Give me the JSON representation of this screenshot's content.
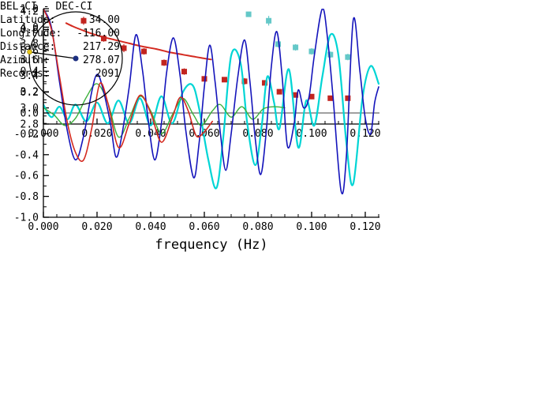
{
  "info_panel": {
    "title": "BEL-CI - DEC-CI",
    "fields": [
      {
        "label": "Latitude:",
        "value": "34.00"
      },
      {
        "label": "Longitude:",
        "value": "-116.00"
      },
      {
        "label": "Distance:",
        "value": "217.29"
      },
      {
        "label": "Azimuth:",
        "value": "278.07"
      },
      {
        "label": "Records:",
        "value": "2091"
      }
    ]
  },
  "azimuth_diagram": {
    "azimuth_deg": 278.07,
    "circle_color": "#000000",
    "line_color": "#000000",
    "station_dot_color": "#e6c619",
    "center_dot_color": "#1c2f80"
  },
  "chart_data": [
    {
      "type": "scatter",
      "title": "",
      "xlabel": "",
      "ylabel": "",
      "xlim": [
        0.0,
        0.1253
      ],
      "ylim": [
        2.8,
        4.2
      ],
      "grid": false,
      "zero_line": false,
      "x_minor_step": 0.005,
      "y_minor_step": 0.1,
      "xticks": [
        {
          "v": 0.0,
          "label": "0.000"
        },
        {
          "v": 0.02,
          "label": "0.020"
        },
        {
          "v": 0.04,
          "label": "0.040"
        },
        {
          "v": 0.06,
          "label": "0.060"
        },
        {
          "v": 0.08,
          "label": "0.080"
        },
        {
          "v": 0.1,
          "label": "0.100"
        },
        {
          "v": 0.12,
          "label": "0.120"
        }
      ],
      "yticks": [
        {
          "v": 2.8,
          "label": "2.8"
        },
        {
          "v": 3.0,
          "label": "3.0"
        },
        {
          "v": 3.2,
          "label": "3.2"
        },
        {
          "v": 3.4,
          "label": "3.4"
        },
        {
          "v": 3.6,
          "label": "3.6"
        },
        {
          "v": 3.8,
          "label": "3.8"
        },
        {
          "v": 4.0,
          "label": "4.0"
        },
        {
          "v": 4.2,
          "label": "4.2"
        }
      ],
      "series": [
        {
          "name": "dispersion-curve-red",
          "kind": "line",
          "color": "#d42a20",
          "width": 2,
          "points": [
            [
              0.0085,
              4.05
            ],
            [
              0.011,
              4.01
            ],
            [
              0.014,
              3.97
            ],
            [
              0.018,
              3.92
            ],
            [
              0.022,
              3.88
            ],
            [
              0.027,
              3.84
            ],
            [
              0.032,
              3.8
            ],
            [
              0.037,
              3.76
            ],
            [
              0.042,
              3.73
            ],
            [
              0.047,
              3.69
            ],
            [
              0.052,
              3.66
            ],
            [
              0.057,
              3.63
            ],
            [
              0.0625,
              3.6
            ]
          ]
        },
        {
          "name": "dispersion-points-red",
          "kind": "scatter",
          "marker": "square",
          "color": "#c22520",
          "points": [
            [
              0.015,
              4.08,
              0.05
            ],
            [
              0.0225,
              3.86,
              0.04
            ],
            [
              0.03,
              3.74,
              0.05
            ],
            [
              0.0375,
              3.7,
              0.04
            ],
            [
              0.045,
              3.56,
              0.04
            ],
            [
              0.0525,
              3.45,
              0.04
            ],
            [
              0.06,
              3.36,
              0.03
            ],
            [
              0.0675,
              3.35,
              0.03
            ],
            [
              0.075,
              3.33,
              0.04
            ],
            [
              0.0825,
              3.31,
              0.03
            ],
            [
              0.088,
              3.2,
              0.03
            ],
            [
              0.094,
              3.16,
              0.03
            ],
            [
              0.1,
              3.14,
              0.03
            ],
            [
              0.107,
              3.12,
              0.03
            ],
            [
              0.1135,
              3.12,
              0.03
            ]
          ]
        },
        {
          "name": "dispersion-points-cyan",
          "kind": "scatter",
          "marker": "square",
          "color": "#64c8c8",
          "points": [
            [
              0.0765,
              4.16,
              0.03
            ],
            [
              0.084,
              4.08,
              0.06
            ],
            [
              0.0875,
              3.79,
              0.04
            ],
            [
              0.094,
              3.75,
              0.04
            ],
            [
              0.1,
              3.7,
              0.04
            ],
            [
              0.107,
              3.66,
              0.04
            ],
            [
              0.1135,
              3.63,
              0.04
            ]
          ]
        }
      ]
    },
    {
      "type": "line",
      "title": "",
      "xlabel": "frequency (Hz)",
      "ylabel": "",
      "xlim": [
        0.0,
        0.1253
      ],
      "ylim": [
        -1.0,
        1.0
      ],
      "grid": false,
      "zero_line": true,
      "x_minor_step": 0.005,
      "y_minor_step": 0.1,
      "xticks": [
        {
          "v": 0.0,
          "label": "0.000"
        },
        {
          "v": 0.02,
          "label": "0.020"
        },
        {
          "v": 0.04,
          "label": "0.040"
        },
        {
          "v": 0.06,
          "label": "0.060"
        },
        {
          "v": 0.08,
          "label": "0.080"
        },
        {
          "v": 0.1,
          "label": "0.100"
        },
        {
          "v": 0.12,
          "label": "0.120"
        }
      ],
      "yticks": [
        {
          "v": -1.0,
          "label": "-1.0"
        },
        {
          "v": -0.8,
          "label": "-0.8"
        },
        {
          "v": -0.6,
          "label": "-0.6"
        },
        {
          "v": -0.4,
          "label": "-0.4"
        },
        {
          "v": -0.2,
          "label": "-0.2"
        },
        {
          "v": 0.0,
          "label": "0.0"
        },
        {
          "v": 0.2,
          "label": "0.2"
        },
        {
          "v": 0.4,
          "label": "0.4"
        },
        {
          "v": 0.6,
          "label": "0.6"
        },
        {
          "v": 0.8,
          "label": "0.8"
        },
        {
          "v": 1.0,
          "label": "1.0"
        }
      ],
      "series": [
        {
          "name": "spectrum-cyan",
          "kind": "line",
          "color": "#00d5d5",
          "width": 2.2,
          "points": [
            [
              0.0,
              0.08
            ],
            [
              0.003,
              -0.04
            ],
            [
              0.006,
              0.06
            ],
            [
              0.009,
              -0.06
            ],
            [
              0.012,
              0.08
            ],
            [
              0.016,
              -0.08
            ],
            [
              0.02,
              0.1
            ],
            [
              0.024,
              -0.1
            ],
            [
              0.028,
              0.12
            ],
            [
              0.032,
              -0.1
            ],
            [
              0.036,
              0.14
            ],
            [
              0.04,
              -0.12
            ],
            [
              0.044,
              0.16
            ],
            [
              0.048,
              -0.1
            ],
            [
              0.052,
              0.2
            ],
            [
              0.0555,
              0.27
            ],
            [
              0.058,
              0.05
            ],
            [
              0.0615,
              -0.45
            ],
            [
              0.0645,
              -0.72
            ],
            [
              0.067,
              -0.25
            ],
            [
              0.07,
              0.55
            ],
            [
              0.0735,
              0.48
            ],
            [
              0.076,
              -0.1
            ],
            [
              0.079,
              -0.5
            ],
            [
              0.0815,
              -0.1
            ],
            [
              0.0835,
              0.35
            ],
            [
              0.086,
              0.1
            ],
            [
              0.088,
              -0.15
            ],
            [
              0.0915,
              0.42
            ],
            [
              0.095,
              -0.33
            ],
            [
              0.098,
              0.12
            ],
            [
              0.101,
              -0.12
            ],
            [
              0.104,
              0.35
            ],
            [
              0.107,
              0.75
            ],
            [
              0.11,
              0.55
            ],
            [
              0.113,
              -0.3
            ],
            [
              0.1155,
              -0.68
            ],
            [
              0.119,
              0.15
            ],
            [
              0.122,
              0.45
            ],
            [
              0.125,
              0.28
            ]
          ]
        },
        {
          "name": "spectrum-green",
          "kind": "line",
          "color": "#3cb03c",
          "width": 1.4,
          "points": [
            [
              0.0,
              0.05
            ],
            [
              0.004,
              -0.02
            ],
            [
              0.008,
              -0.12
            ],
            [
              0.012,
              -0.05
            ],
            [
              0.016,
              0.15
            ],
            [
              0.02,
              0.28
            ],
            [
              0.024,
              0.1
            ],
            [
              0.028,
              -0.23
            ],
            [
              0.032,
              -0.05
            ],
            [
              0.036,
              0.16
            ],
            [
              0.04,
              0.02
            ],
            [
              0.044,
              -0.2
            ],
            [
              0.048,
              -0.02
            ],
            [
              0.052,
              0.14
            ],
            [
              0.056,
              -0.02
            ],
            [
              0.059,
              -0.12
            ],
            [
              0.063,
              0.02
            ],
            [
              0.066,
              0.08
            ],
            [
              0.07,
              -0.04
            ],
            [
              0.074,
              0.06
            ],
            [
              0.078,
              -0.06
            ],
            [
              0.082,
              0.04
            ],
            [
              0.086,
              0.06
            ],
            [
              0.09,
              0.05
            ]
          ]
        },
        {
          "name": "spectrum-blue",
          "kind": "line",
          "color": "#1414bb",
          "width": 1.6,
          "points": [
            [
              0.0,
              1.0
            ],
            [
              0.003,
              0.82
            ],
            [
              0.006,
              0.3
            ],
            [
              0.009,
              -0.18
            ],
            [
              0.012,
              -0.45
            ],
            [
              0.015,
              -0.22
            ],
            [
              0.018,
              0.2
            ],
            [
              0.02,
              0.37
            ],
            [
              0.022,
              0.25
            ],
            [
              0.025,
              -0.1
            ],
            [
              0.027,
              -0.42
            ],
            [
              0.029,
              -0.25
            ],
            [
              0.032,
              0.25
            ],
            [
              0.0345,
              0.75
            ],
            [
              0.037,
              0.4
            ],
            [
              0.039,
              -0.05
            ],
            [
              0.0415,
              -0.45
            ],
            [
              0.044,
              -0.1
            ],
            [
              0.046,
              0.4
            ],
            [
              0.0485,
              0.72
            ],
            [
              0.051,
              0.35
            ],
            [
              0.053,
              -0.15
            ],
            [
              0.056,
              -0.62
            ],
            [
              0.058,
              -0.3
            ],
            [
              0.06,
              0.25
            ],
            [
              0.062,
              0.65
            ],
            [
              0.064,
              0.3
            ],
            [
              0.066,
              -0.2
            ],
            [
              0.068,
              -0.55
            ],
            [
              0.07,
              -0.2
            ],
            [
              0.0725,
              0.35
            ],
            [
              0.075,
              0.7
            ],
            [
              0.077,
              0.3
            ],
            [
              0.079,
              -0.25
            ],
            [
              0.081,
              -0.59
            ],
            [
              0.083,
              -0.2
            ],
            [
              0.085,
              0.45
            ],
            [
              0.087,
              0.78
            ],
            [
              0.089,
              0.35
            ],
            [
              0.091,
              -0.32
            ],
            [
              0.0935,
              -0.1
            ],
            [
              0.095,
              0.22
            ],
            [
              0.097,
              0.05
            ],
            [
              0.099,
              0.15
            ],
            [
              0.101,
              0.55
            ],
            [
              0.104,
              1.0
            ],
            [
              0.106,
              0.7
            ],
            [
              0.108,
              0.15
            ],
            [
              0.111,
              -0.75
            ],
            [
              0.113,
              -0.4
            ],
            [
              0.1155,
              0.89
            ],
            [
              0.118,
              0.4
            ],
            [
              0.12,
              -0.05
            ],
            [
              0.122,
              -0.2
            ],
            [
              0.1235,
              0.1
            ],
            [
              0.125,
              0.25
            ]
          ]
        },
        {
          "name": "spectrum-red",
          "kind": "line",
          "color": "#d42a20",
          "width": 1.6,
          "points": [
            [
              0.0,
              1.0
            ],
            [
              0.003,
              0.8
            ],
            [
              0.006,
              0.35
            ],
            [
              0.009,
              -0.1
            ],
            [
              0.012,
              -0.38
            ],
            [
              0.015,
              -0.45
            ],
            [
              0.018,
              -0.15
            ],
            [
              0.021,
              0.28
            ],
            [
              0.024,
              0.1
            ],
            [
              0.028,
              -0.33
            ],
            [
              0.032,
              -0.1
            ],
            [
              0.036,
              0.17
            ],
            [
              0.04,
              0.0
            ],
            [
              0.044,
              -0.28
            ],
            [
              0.048,
              -0.05
            ],
            [
              0.051,
              0.15
            ],
            [
              0.054,
              0.02
            ],
            [
              0.057,
              -0.22
            ],
            [
              0.06,
              -0.18
            ],
            [
              0.063,
              -0.08
            ]
          ]
        }
      ]
    }
  ]
}
